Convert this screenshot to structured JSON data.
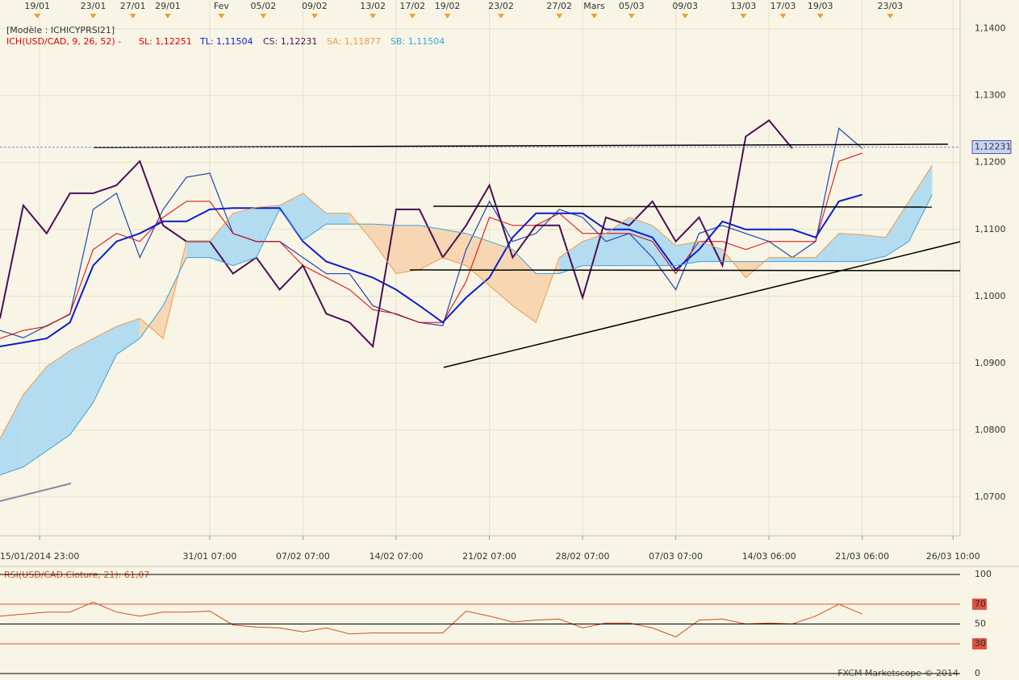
{
  "chart_data": [
    {
      "type": "line",
      "title": "[Modèle : ICHICYPRSI21]",
      "indicator": "ICH(USD/CAD, 9, 26, 52) -",
      "xlim": [
        0,
        41.2
      ],
      "ylim": [
        1.0642,
        1.1443
      ],
      "yticks": [
        {
          "value": 1.14,
          "label": "1,1400"
        },
        {
          "value": 1.13,
          "label": "1,1300"
        },
        {
          "value": 1.12,
          "label": "1,1200"
        },
        {
          "value": 1.11,
          "label": "1,1100"
        },
        {
          "value": 1.1,
          "label": "1,1000"
        },
        {
          "value": 1.09,
          "label": "1,0900"
        },
        {
          "value": 1.08,
          "label": "1,0800"
        },
        {
          "value": 1.07,
          "label": "1,0700"
        }
      ],
      "xticks": [
        {
          "value": 1.7,
          "label": "15/01/2014 23:00"
        },
        {
          "value": 9,
          "label": "31/01 07:00"
        },
        {
          "value": 13,
          "label": "07/02 07:00"
        },
        {
          "value": 17,
          "label": "14/02 07:00"
        },
        {
          "value": 21,
          "label": "21/02 07:00"
        },
        {
          "value": 25,
          "label": "28/02 07:00"
        },
        {
          "value": 29,
          "label": "07/03 07:00"
        },
        {
          "value": 33,
          "label": "14/03 06:00"
        },
        {
          "value": 37,
          "label": "21/03 06:00"
        },
        {
          "value": 40.9,
          "label": "26/03 10:00"
        }
      ],
      "x2ticks": [
        {
          "value": 1.6,
          "label": "19/01"
        },
        {
          "value": 4.0,
          "label": "23/01"
        },
        {
          "value": 5.7,
          "label": "27/01"
        },
        {
          "value": 7.2,
          "label": "29/01"
        },
        {
          "value": 9.5,
          "label": "Fev"
        },
        {
          "value": 11.3,
          "label": "05/02"
        },
        {
          "value": 13.5,
          "label": "09/02"
        },
        {
          "value": 16.0,
          "label": "13/02"
        },
        {
          "value": 17.7,
          "label": "17/02"
        },
        {
          "value": 19.2,
          "label": "19/02"
        },
        {
          "value": 21.5,
          "label": "23/02"
        },
        {
          "value": 24.0,
          "label": "27/02"
        },
        {
          "value": 25.5,
          "label": "Mars"
        },
        {
          "value": 27.1,
          "label": "05/03"
        },
        {
          "value": 29.4,
          "label": "09/03"
        },
        {
          "value": 31.9,
          "label": "13/03"
        },
        {
          "value": 33.6,
          "label": "17/03"
        },
        {
          "value": 35.2,
          "label": "19/03"
        },
        {
          "value": 38.2,
          "label": "23/03"
        }
      ],
      "current_price": {
        "value": 1.12231,
        "label": "1,12231"
      },
      "grid": true,
      "cloud_colors": {
        "up": "#b4dcf0",
        "down": "#f7d6b3"
      },
      "x": [
        0,
        1,
        2,
        3,
        4,
        5,
        6,
        7,
        8,
        9,
        10,
        11,
        12,
        13,
        14,
        15,
        16,
        17,
        18,
        19,
        20,
        21,
        22,
        23,
        24,
        25,
        26,
        27,
        28,
        29,
        30,
        31,
        32,
        33,
        34,
        35,
        36,
        37,
        38,
        39,
        40
      ],
      "series": [
        {
          "color": "#2f52b0",
          "width": 1.3,
          "values": [
            1.0949,
            1.0938,
            1.0956,
            1.0973,
            1.113,
            1.1154,
            1.1058,
            1.113,
            1.1178,
            1.1184,
            1.1094,
            1.1082,
            1.1082,
            1.1058,
            1.1034,
            1.1034,
            1.0986,
            1.0973,
            1.0961,
            1.0956,
            1.107,
            1.1142,
            1.1082,
            1.1094,
            1.113,
            1.1118,
            1.1082,
            1.1094,
            1.1058,
            1.101,
            1.1094,
            1.1106,
            1.1094,
            1.1082,
            1.1058,
            1.1082,
            1.1251,
            1.1221,
            null,
            null,
            null
          ]
        },
        {
          "name": "SL: 1,12251",
          "color": "#dd0000",
          "width": 1,
          "values": [
            1.0937,
            1.0949,
            1.0955,
            1.0974,
            1.107,
            1.1094,
            1.1082,
            1.1118,
            1.1142,
            1.1142,
            1.1094,
            1.1082,
            1.1082,
            1.1046,
            1.1028,
            1.101,
            1.098,
            1.0974,
            1.0961,
            1.0961,
            1.1022,
            1.1118,
            1.1106,
            1.1106,
            1.1124,
            1.1094,
            1.1094,
            1.1094,
            1.1082,
            1.1034,
            1.1082,
            1.1082,
            1.107,
            1.1082,
            1.1082,
            1.1082,
            1.1202,
            1.1214,
            null,
            null,
            null
          ]
        },
        {
          "name": "TL: 1,11504",
          "color": "#0a1ecc",
          "width": 2,
          "values": [
            1.0925,
            1.0931,
            1.0937,
            1.0961,
            1.1046,
            1.1082,
            1.1094,
            1.1112,
            1.1112,
            1.113,
            1.1132,
            1.1132,
            1.1132,
            1.1082,
            1.1052,
            1.104,
            1.1028,
            1.101,
            1.0986,
            1.0961,
            1.0998,
            1.1028,
            1.1088,
            1.1124,
            1.1124,
            1.1124,
            1.11,
            1.11,
            1.1088,
            1.104,
            1.107,
            1.1112,
            1.11,
            1.11,
            1.11,
            1.1088,
            1.1142,
            1.1152,
            null,
            null,
            null
          ]
        },
        {
          "name": "CS: 1,12231",
          "color": "#4b0f55",
          "width": 2,
          "values": [
            1.0967,
            1.1136,
            1.1094,
            1.1154,
            1.1154,
            1.1166,
            1.1202,
            1.1106,
            1.1082,
            1.1082,
            1.1034,
            1.1058,
            1.101,
            1.1046,
            1.0974,
            1.0961,
            1.0925,
            1.113,
            1.113,
            1.1058,
            1.1106,
            1.1166,
            1.1058,
            1.1106,
            1.1106,
            1.0998,
            1.1118,
            1.1106,
            1.1142,
            1.1082,
            1.1118,
            1.1046,
            1.1239,
            1.1263,
            1.1221,
            null,
            null,
            null,
            null,
            null,
            null
          ]
        },
        {
          "name": "SA: 1,11877",
          "color": "#f29a4a",
          "width": 1,
          "values": [
            1.0787,
            1.0853,
            1.0895,
            1.0919,
            1.0937,
            1.0955,
            1.0967,
            1.0937,
            1.1082,
            1.1082,
            1.1124,
            1.1133,
            1.1136,
            1.1154,
            1.1124,
            1.1124,
            1.1082,
            1.1034,
            1.104,
            1.1058,
            1.1046,
            1.1016,
            1.0986,
            1.0961,
            1.1058,
            1.1082,
            1.1094,
            1.1118,
            1.1106,
            1.1076,
            1.1082,
            1.107,
            1.1028,
            1.1058,
            1.1058,
            1.1058,
            1.1094,
            1.1092,
            1.1088,
            1.1142,
            1.1196
          ]
        },
        {
          "name": "SB: 1,11504",
          "color": "#3aa3da",
          "width": 1,
          "values": [
            1.0733,
            1.0745,
            1.0769,
            1.0793,
            1.0841,
            1.0913,
            1.0937,
            1.0986,
            1.1058,
            1.1058,
            1.1046,
            1.1058,
            1.113,
            1.1084,
            1.1108,
            1.1108,
            1.1108,
            1.1106,
            1.1106,
            1.11,
            1.1094,
            1.1082,
            1.107,
            1.1034,
            1.1034,
            1.1046,
            1.1046,
            1.1046,
            1.1046,
            1.1046,
            1.1052,
            1.1052,
            1.1052,
            1.1052,
            1.1052,
            1.1052,
            1.1052,
            1.1052,
            1.106,
            1.1082,
            1.1152
          ]
        }
      ]
    },
    {
      "type": "line",
      "title": "RSI(USD/CAD.Cloture, 21): 61,07",
      "footer": "FXCM Marketscope © 2014",
      "xlim": [
        0,
        41.2
      ],
      "ylim": [
        0,
        100
      ],
      "yticks": [
        100,
        70,
        50,
        30,
        0
      ],
      "tick_line_colors": [
        "#000000",
        "#e05040",
        "#000000",
        "#e05040",
        "#000000"
      ],
      "x": [
        0,
        1,
        2,
        3,
        4,
        5,
        6,
        7,
        8,
        9,
        10,
        11,
        12,
        13,
        14,
        15,
        16,
        17,
        18,
        19,
        20,
        21,
        22,
        23,
        24,
        25,
        26,
        27,
        28,
        29,
        30,
        31,
        32,
        33,
        34,
        35,
        36,
        37
      ],
      "series": [
        {
          "color": "#d0501c",
          "width": 1,
          "values": [
            58,
            60,
            62,
            62,
            72,
            62,
            58,
            62,
            62,
            63,
            49,
            47,
            46,
            42,
            46,
            40,
            41,
            41,
            41,
            41,
            63,
            58,
            52,
            54,
            55,
            46,
            51,
            51,
            46,
            37,
            54,
            55,
            50,
            51,
            50,
            58,
            70,
            60
          ]
        }
      ]
    }
  ]
}
